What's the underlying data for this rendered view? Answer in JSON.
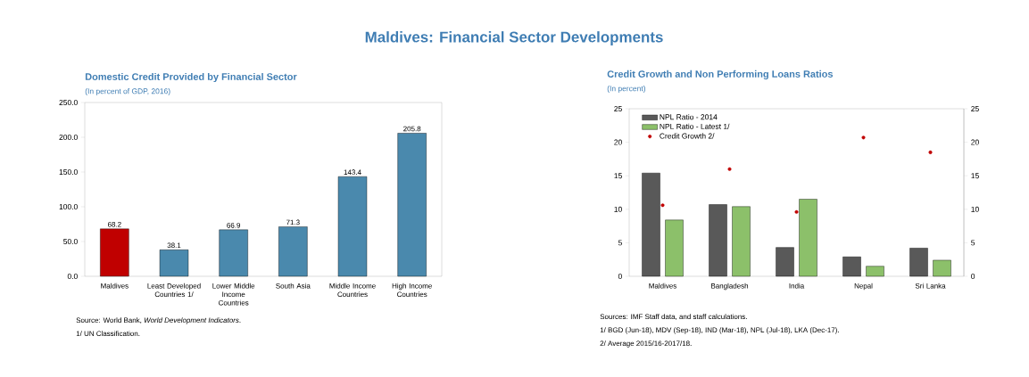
{
  "chart_data": [
    {
      "type": "other",
      "title": "Maldives: Financial Sector Developments"
    },
    {
      "type": "bar",
      "title": "Domestic Credit Provided by Financial Sector",
      "subtitle": "(In percent of GDP, 2016)",
      "categories": [
        "Maldives",
        "Least Developed Countries 1/",
        "Lower Middle Income Countries",
        "South Asia",
        "Middle Income Countries",
        "High Income Countries"
      ],
      "values": [
        68.2,
        38.1,
        66.9,
        71.3,
        143.4,
        205.8
      ],
      "colors": [
        "#c00000",
        "#4a89ad",
        "#4a89ad",
        "#4a89ad",
        "#4a89ad",
        "#4a89ad"
      ],
      "ylim": [
        0,
        250
      ],
      "yticks": [
        {
          "value": 0,
          "label": "0.0"
        },
        {
          "value": 50,
          "label": "50.0"
        },
        {
          "value": 100,
          "label": "100.0"
        },
        {
          "value": 150,
          "label": "150.0"
        },
        {
          "value": 200,
          "label": "200.0"
        },
        {
          "value": 250,
          "label": "250.0"
        }
      ],
      "data_labels": true,
      "grid": false,
      "annotations": [
        "Source: World Bank, *World Development Indicators*.",
        "1/ UN Classification."
      ]
    },
    {
      "type": "bar",
      "title": "Credit Growth and Non Performing Loans Ratios",
      "subtitle": "(In percent)",
      "categories": [
        "Maldives",
        "Bangladesh",
        "India",
        "Nepal",
        "Sri Lanka"
      ],
      "series": [
        {
          "name": "NPL Ratio - 2014",
          "color": "#595959",
          "values": [
            15.4,
            10.7,
            4.3,
            2.9,
            4.2
          ]
        },
        {
          "name": "NPL Ratio - Latest 1/",
          "color": "#8cc06a",
          "values": [
            8.4,
            10.4,
            11.5,
            1.5,
            2.4
          ]
        },
        {
          "name": "Credit Growth 2/",
          "type": "scatter",
          "marker": "circle",
          "color": "#c00000",
          "values": [
            10.6,
            16.0,
            9.6,
            20.7,
            18.5
          ]
        }
      ],
      "ylim": [
        0,
        25
      ],
      "yticks": [
        0,
        5,
        10,
        15,
        20,
        25
      ],
      "y2lim": [
        0,
        25
      ],
      "y2ticks": [
        0,
        5,
        10,
        15,
        20,
        25
      ],
      "legend": "top left",
      "grid": false,
      "annotations": [
        "Sources: IMF Staff data, and staff calculations.",
        "1/ BGD (Jun-18), MDV (Sep-18), IND (Mar-18), NPL (Jul-18), LKA (Dec-17).",
        "2/ Average 2015/16-2017/18."
      ]
    }
  ]
}
